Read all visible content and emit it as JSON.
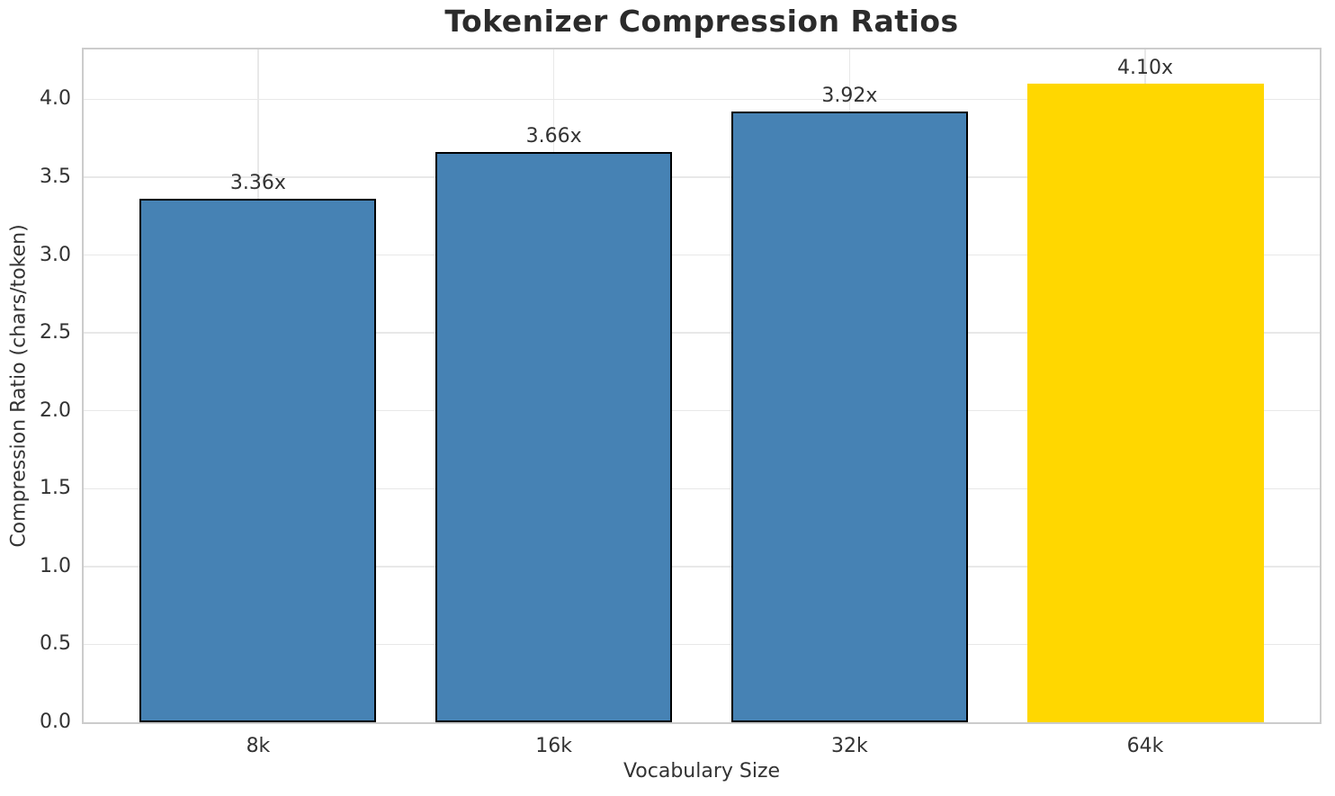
{
  "chart_data": {
    "type": "bar",
    "title": "Tokenizer Compression Ratios",
    "xlabel": "Vocabulary Size",
    "ylabel": "Compression Ratio (chars/token)",
    "categories": [
      "8k",
      "16k",
      "32k",
      "64k"
    ],
    "values": [
      3.36,
      3.66,
      3.92,
      4.1
    ],
    "bar_labels": [
      "3.36x",
      "3.66x",
      "3.92x",
      "4.10x"
    ],
    "bar_colors": [
      "#4682B4",
      "#4682B4",
      "#4682B4",
      "#FFD700"
    ],
    "bar_edge_colors": [
      "#000000",
      "#000000",
      "#000000",
      "transparent"
    ],
    "ylim": [
      0,
      4.32
    ],
    "yticks": [
      0.0,
      0.5,
      1.0,
      1.5,
      2.0,
      2.5,
      3.0,
      3.5,
      4.0
    ],
    "ytick_labels": [
      "0.0",
      "0.5",
      "1.0",
      "1.5",
      "2.0",
      "2.5",
      "3.0",
      "3.5",
      "4.0"
    ],
    "grid": true,
    "legend": "none",
    "bar_width_frac": 0.8,
    "style": {
      "background": "#ffffff",
      "grid_color": "#e8e8e8",
      "spine_color": "#cccccc",
      "text_color": "#333333",
      "title_color": "#2b2b2b",
      "highlight_color": "#FFD700",
      "base_color": "#4682B4"
    }
  }
}
